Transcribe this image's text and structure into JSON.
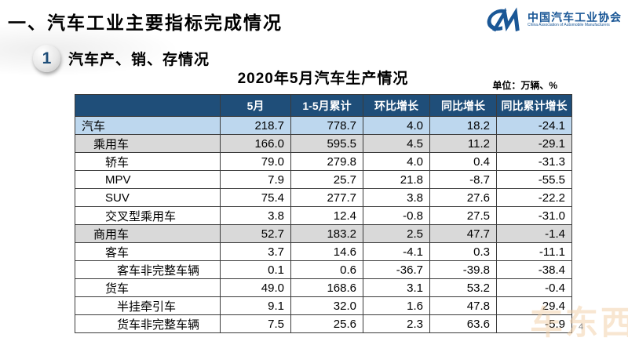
{
  "page": {
    "title": "一、汽车工业主要指标完成情况",
    "page_number": "4",
    "watermark": "车东西"
  },
  "logo": {
    "monogram": "CM",
    "org_name_cn": "中国汽车工业协会",
    "org_name_en": "China Association of Automobile Manufacturers"
  },
  "section": {
    "badge": "1",
    "title": "汽车产、销、存情况"
  },
  "table": {
    "title": "2020年5月汽车生产情况",
    "unit_note": "单位：万辆、%",
    "columns": [
      "",
      "5月",
      "1-5月累计",
      "环比增长",
      "同比增长",
      "同比累计增长"
    ],
    "rows": [
      {
        "label": "汽车",
        "indent": 0,
        "style": "blue",
        "values": [
          "218.7",
          "778.7",
          "4.0",
          "18.2",
          "-24.1"
        ]
      },
      {
        "label": "乘用车",
        "indent": 1,
        "style": "gray",
        "values": [
          "166.0",
          "595.5",
          "4.5",
          "11.2",
          "-29.1"
        ]
      },
      {
        "label": "轿车",
        "indent": 2,
        "style": "white",
        "values": [
          "79.0",
          "279.8",
          "4.0",
          "0.4",
          "-31.3"
        ]
      },
      {
        "label": "MPV",
        "indent": 2,
        "style": "white",
        "values": [
          "7.9",
          "25.7",
          "21.8",
          "-8.7",
          "-55.5"
        ]
      },
      {
        "label": "SUV",
        "indent": 2,
        "style": "white",
        "values": [
          "75.4",
          "277.7",
          "3.8",
          "27.6",
          "-22.2"
        ]
      },
      {
        "label": "交叉型乘用车",
        "indent": 2,
        "style": "white",
        "values": [
          "3.8",
          "12.4",
          "-0.8",
          "27.5",
          "-31.0"
        ]
      },
      {
        "label": "商用车",
        "indent": 1,
        "style": "gray",
        "values": [
          "52.7",
          "183.2",
          "2.5",
          "47.7",
          "-1.4"
        ]
      },
      {
        "label": "客车",
        "indent": 2,
        "style": "white",
        "values": [
          "3.7",
          "14.6",
          "-4.1",
          "0.3",
          "-11.1"
        ]
      },
      {
        "label": "客车非完整车辆",
        "indent": 3,
        "style": "white",
        "values": [
          "0.1",
          "0.6",
          "-36.7",
          "-39.8",
          "-38.4"
        ]
      },
      {
        "label": "货车",
        "indent": 2,
        "style": "white",
        "values": [
          "49.0",
          "168.6",
          "3.1",
          "53.2",
          "-0.4"
        ]
      },
      {
        "label": "半挂牵引车",
        "indent": 3,
        "style": "white",
        "values": [
          "9.1",
          "32.0",
          "1.6",
          "47.8",
          "29.4"
        ]
      },
      {
        "label": "货车非完整车辆",
        "indent": 3,
        "style": "white",
        "values": [
          "7.5",
          "25.6",
          "2.3",
          "63.6",
          "-5.9"
        ]
      }
    ]
  },
  "colors": {
    "header_bg": "#1F4E79",
    "header_text": "#FFFFFF",
    "row_blue": "#BDD7EE",
    "row_gray": "#D9D9D9",
    "border": "#3B3B3B",
    "logo_blue": "#1A5796",
    "watermark": "#F2CFA5"
  }
}
